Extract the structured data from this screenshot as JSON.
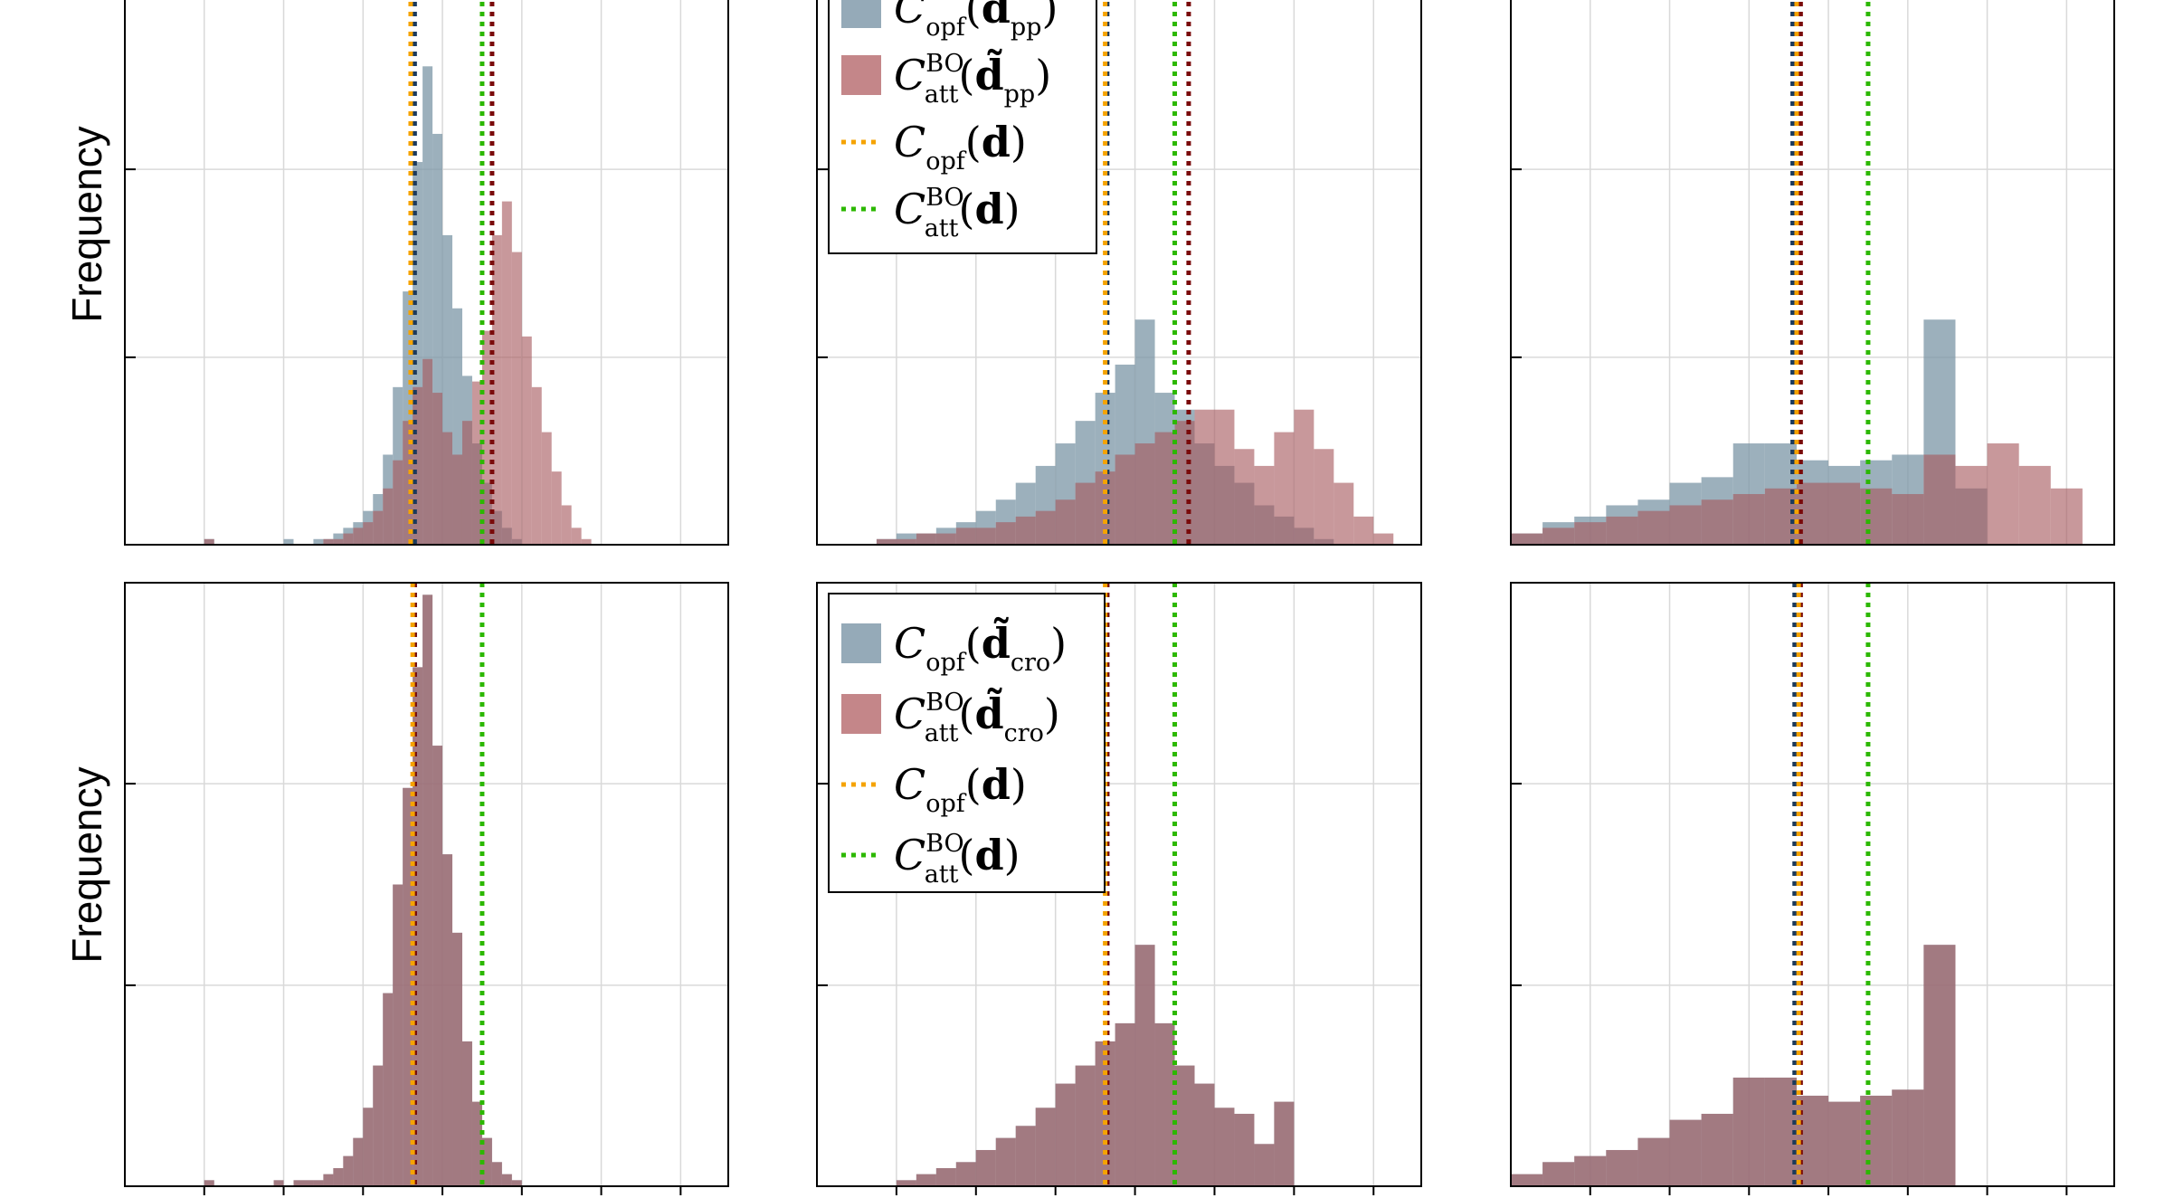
{
  "figure": {
    "y_axis_labels": [
      "Frequency",
      "Frequency"
    ],
    "legends": [
      {
        "entries": [
          {
            "kind": "patch",
            "color": "#7b95a6",
            "base": "C",
            "sub": "opf",
            "sup": "",
            "arg": "d̃",
            "argsub": "pp"
          },
          {
            "kind": "patch",
            "color": "#b5686c",
            "base": "C",
            "sub": "att",
            "sup": "BO",
            "arg": "d̃",
            "argsub": "pp"
          },
          {
            "kind": "line",
            "color": "#f5a300",
            "base": "C",
            "sub": "opf",
            "sup": "",
            "arg": "d",
            "argsub": ""
          },
          {
            "kind": "line",
            "color": "#2cb800",
            "base": "C",
            "sub": "att",
            "sup": "BO",
            "arg": "d",
            "argsub": ""
          }
        ]
      },
      {
        "entries": [
          {
            "kind": "patch",
            "color": "#7b95a6",
            "base": "C",
            "sub": "opf",
            "sup": "",
            "arg": "d̃",
            "argsub": "cro"
          },
          {
            "kind": "patch",
            "color": "#b5686c",
            "base": "C",
            "sub": "att",
            "sup": "BO",
            "arg": "d̃",
            "argsub": "cro"
          },
          {
            "kind": "line",
            "color": "#f5a300",
            "base": "C",
            "sub": "opf",
            "sup": "",
            "arg": "d",
            "argsub": ""
          },
          {
            "kind": "line",
            "color": "#2cb800",
            "base": "C",
            "sub": "att",
            "sup": "BO",
            "arg": "d",
            "argsub": ""
          }
        ]
      }
    ]
  },
  "colors": {
    "opf_hist": "#7b95a6",
    "att_hist": "#a6585e",
    "opf_line": "#f5a300",
    "att_line": "#2cb800",
    "opf_tilde_line": "#1b3a5c",
    "att_tilde_line": "#7a0a0a",
    "grid": "#d9d9d9"
  },
  "chart_data": [
    {
      "type": "histogram",
      "xlim": [
        0,
        15.2
      ],
      "ylim": [
        0,
        100
      ],
      "xticks": [
        2,
        4,
        6,
        8,
        10,
        12,
        14
      ],
      "yticks": [
        33.3,
        66.7
      ],
      "vlines": {
        "opf_tilde": 7.3,
        "att_tilde": 9.25,
        "opf_d": 7.2,
        "att_d": 9.0
      },
      "series": [
        {
          "name": "Copf(d̃pp)",
          "start": 2.0,
          "width": 0.25,
          "values": [
            1,
            0,
            0,
            0,
            0,
            0,
            0,
            0,
            1,
            0,
            0,
            1,
            1,
            2,
            3,
            4,
            6,
            9,
            16,
            28,
            45,
            68,
            85,
            73,
            55,
            42,
            30,
            18,
            11,
            6,
            3,
            1,
            0,
            0,
            0,
            0,
            0,
            0,
            0,
            0,
            0,
            0,
            0
          ]
        },
        {
          "name": "CattBO(d̃pp)",
          "start": 2.0,
          "width": 0.25,
          "values": [
            1,
            0,
            0,
            0,
            0,
            0,
            0,
            0,
            0,
            0,
            0,
            0,
            1,
            1,
            2,
            3,
            4,
            6,
            10,
            15,
            22,
            28,
            33,
            27,
            20,
            16,
            22,
            29,
            38,
            55,
            61,
            52,
            37,
            28,
            20,
            13,
            7,
            3,
            1,
            0,
            0,
            0,
            0
          ]
        }
      ]
    },
    {
      "type": "histogram",
      "xlim": [
        0,
        15.2
      ],
      "ylim": [
        0,
        100
      ],
      "xticks": [
        2,
        4,
        6,
        8,
        10,
        12,
        14
      ],
      "yticks": [
        33.3,
        66.7
      ],
      "vlines": {
        "opf_tilde": 7.3,
        "att_tilde": 9.35,
        "opf_d": 7.25,
        "att_d": 9.0
      },
      "series": [
        {
          "name": "Copf(d̃pp)",
          "start": 1.5,
          "width": 0.5,
          "values": [
            1,
            2,
            2,
            3,
            4,
            6,
            8,
            11,
            14,
            18,
            22,
            27,
            32,
            40,
            27,
            24,
            18,
            14,
            11,
            7,
            5,
            3,
            1,
            0,
            0,
            0
          ]
        },
        {
          "name": "CattBO(d̃pp)",
          "start": 1.5,
          "width": 0.5,
          "values": [
            1,
            1,
            2,
            2,
            3,
            3,
            4,
            5,
            6,
            8,
            11,
            13,
            16,
            18,
            20,
            22,
            24,
            24,
            17,
            14,
            20,
            24,
            17,
            11,
            5,
            2
          ]
        }
      ]
    },
    {
      "type": "histogram",
      "xlim": [
        0,
        15.2
      ],
      "ylim": [
        0,
        100
      ],
      "xticks": [
        2,
        4,
        6,
        8,
        10,
        12,
        14
      ],
      "yticks": [
        33.3,
        66.7
      ],
      "vlines": {
        "opf_tilde": 7.1,
        "att_tilde": 7.3,
        "opf_d": 7.2,
        "att_d": 9.0
      },
      "series": [
        {
          "name": "Copf(d̃pp)",
          "start": 0.0,
          "width": 0.8,
          "values": [
            2,
            4,
            5,
            7,
            8,
            11,
            12,
            18,
            18,
            15,
            14,
            15,
            16,
            40,
            10,
            0,
            0,
            0,
            0
          ]
        },
        {
          "name": "CattBO(d̃pp)",
          "start": 0.0,
          "width": 0.8,
          "values": [
            2,
            3,
            4,
            5,
            6,
            7,
            8,
            9,
            10,
            11,
            11,
            10,
            9,
            16,
            14,
            18,
            14,
            10,
            0
          ]
        }
      ]
    },
    {
      "type": "histogram",
      "xlim": [
        0,
        15.2
      ],
      "ylim": [
        0,
        100
      ],
      "xticks": [
        2,
        4,
        6,
        8,
        10,
        12,
        14
      ],
      "yticks": [
        33.3,
        66.7
      ],
      "vlines": {
        "opf_tilde": 7.3,
        "att_tilde": 7.3,
        "opf_d": 7.25,
        "att_d": 9.0
      },
      "series": [
        {
          "name": "Copf(d̃cro)",
          "start": 2.0,
          "width": 0.25,
          "values": [
            1,
            0,
            0,
            0,
            0,
            0,
            0,
            1,
            0,
            1,
            1,
            1,
            2,
            3,
            5,
            8,
            13,
            20,
            32,
            50,
            66,
            86,
            98,
            73,
            55,
            42,
            24,
            14,
            8,
            4,
            2,
            1,
            0,
            0,
            0,
            0,
            0,
            0,
            0,
            0,
            0,
            0
          ]
        },
        {
          "name": "CattBO(d̃cro)",
          "start": 2.0,
          "width": 0.25,
          "values": [
            1,
            0,
            0,
            0,
            0,
            0,
            0,
            1,
            0,
            1,
            1,
            1,
            2,
            3,
            5,
            8,
            13,
            20,
            32,
            50,
            66,
            86,
            98,
            73,
            55,
            42,
            24,
            14,
            8,
            4,
            2,
            1,
            0,
            0,
            0,
            0,
            0,
            0,
            0,
            0,
            0,
            0
          ]
        }
      ]
    },
    {
      "type": "histogram",
      "xlim": [
        0,
        15.2
      ],
      "ylim": [
        0,
        100
      ],
      "xticks": [
        2,
        4,
        6,
        8,
        10,
        12,
        14
      ],
      "yticks": [
        33.3,
        66.7
      ],
      "vlines": {
        "opf_tilde": 7.3,
        "att_tilde": 7.3,
        "opf_d": 7.25,
        "att_d": 9.0
      },
      "series": [
        {
          "name": "Copf(d̃cro)",
          "start": 1.5,
          "width": 0.5,
          "values": [
            0,
            1,
            2,
            3,
            4,
            6,
            8,
            10,
            13,
            17,
            20,
            24,
            27,
            40,
            27,
            20,
            17,
            13,
            12,
            7,
            14,
            0
          ]
        },
        {
          "name": "CattBO(d̃cro)",
          "start": 1.5,
          "width": 0.5,
          "values": [
            0,
            1,
            2,
            3,
            4,
            6,
            8,
            10,
            13,
            17,
            20,
            24,
            27,
            40,
            27,
            20,
            17,
            13,
            12,
            7,
            14,
            0
          ]
        }
      ]
    },
    {
      "type": "histogram",
      "xlim": [
        0,
        15.2
      ],
      "ylim": [
        0,
        100
      ],
      "xticks": [
        2,
        4,
        6,
        8,
        10,
        12,
        14
      ],
      "yticks": [
        33.3,
        66.7
      ],
      "vlines": {
        "opf_tilde": 7.15,
        "att_tilde": 7.3,
        "opf_d": 7.25,
        "att_d": 9.0
      },
      "series": [
        {
          "name": "Copf(d̃cro)",
          "start": 0.0,
          "width": 0.8,
          "values": [
            2,
            4,
            5,
            6,
            8,
            11,
            12,
            18,
            18,
            15,
            14,
            15,
            16,
            40,
            0,
            0,
            0,
            0,
            0
          ]
        },
        {
          "name": "CattBO(d̃cro)",
          "start": 0.0,
          "width": 0.8,
          "values": [
            2,
            4,
            5,
            6,
            8,
            11,
            12,
            18,
            18,
            15,
            14,
            15,
            16,
            40,
            0,
            0,
            0,
            0,
            0
          ]
        }
      ]
    }
  ]
}
